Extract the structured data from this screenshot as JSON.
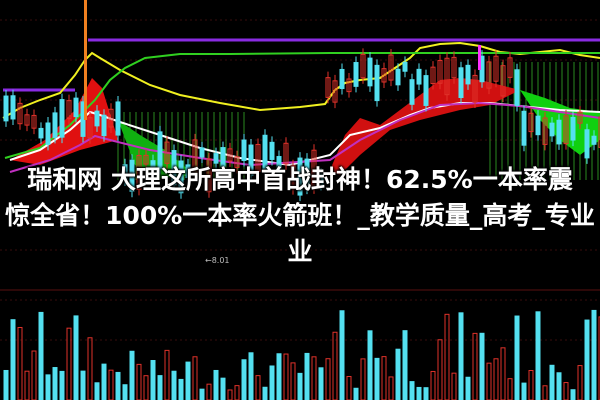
{
  "headline": {
    "lines": [
      "瑞和网  大理这所高中首战封神！62.5%一本率震",
      "惊全省！100%一本率火箭班！_教学质量_高考_专业",
      "业"
    ]
  },
  "chart": {
    "low_price_label": "←8.01",
    "colors": {
      "background": "#000000",
      "up_candle": "#e0322a",
      "down_candle": "#54e0f0",
      "ribbon_red": "#ff1010",
      "ribbon_green": "#10d010",
      "ma_yellow": "#f0f020",
      "ma_green": "#30d020",
      "resistance_purple": "#8a2be2",
      "ma_white": "#ffffff",
      "ma_magenta": "#ff30ff"
    }
  }
}
